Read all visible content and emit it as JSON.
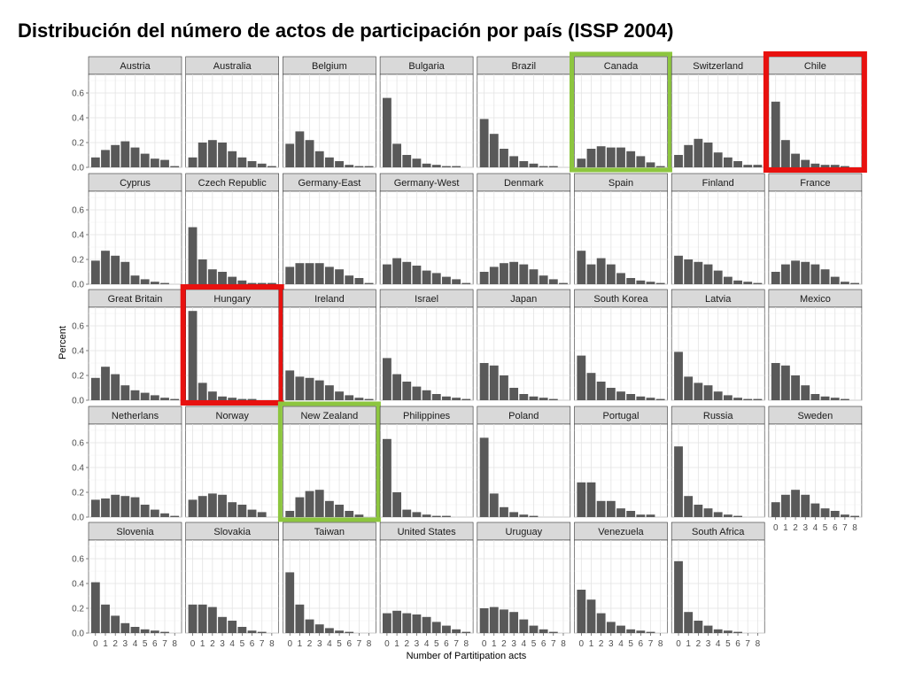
{
  "chart_data": {
    "type": "bar",
    "layout": "facet-grid",
    "title": "Distribución del número de actos de participación por país (ISSP 2004)",
    "xlabel": "Number of Partitipation acts",
    "ylabel": "Percent",
    "x": [
      "0",
      "1",
      "2",
      "3",
      "4",
      "5",
      "6",
      "7",
      "8"
    ],
    "ylim": [
      0,
      0.75
    ],
    "yticks": [
      "0.0",
      "0.2",
      "0.4",
      "0.6"
    ],
    "grid": true,
    "bar_color": "#595959",
    "highlight_colors": {
      "red": "#e8110f",
      "green": "#8dc63f"
    },
    "panels": [
      {
        "name": "Austria",
        "values": [
          0.08,
          0.14,
          0.18,
          0.21,
          0.16,
          0.11,
          0.07,
          0.06,
          0.01
        ]
      },
      {
        "name": "Australia",
        "values": [
          0.08,
          0.2,
          0.22,
          0.2,
          0.13,
          0.08,
          0.05,
          0.03,
          0.01
        ]
      },
      {
        "name": "Belgium",
        "values": [
          0.19,
          0.29,
          0.22,
          0.13,
          0.08,
          0.05,
          0.02,
          0.01,
          0.01
        ]
      },
      {
        "name": "Bulgaria",
        "values": [
          0.56,
          0.19,
          0.1,
          0.07,
          0.03,
          0.02,
          0.01,
          0.01,
          0.0
        ]
      },
      {
        "name": "Brazil",
        "values": [
          0.39,
          0.27,
          0.15,
          0.09,
          0.05,
          0.03,
          0.01,
          0.01,
          0.0
        ]
      },
      {
        "name": "Canada",
        "values": [
          0.07,
          0.15,
          0.17,
          0.16,
          0.16,
          0.13,
          0.09,
          0.04,
          0.01
        ],
        "highlight": "green"
      },
      {
        "name": "Switzerland",
        "values": [
          0.1,
          0.18,
          0.23,
          0.2,
          0.12,
          0.08,
          0.05,
          0.02,
          0.02
        ]
      },
      {
        "name": "Chile",
        "values": [
          0.53,
          0.22,
          0.11,
          0.06,
          0.03,
          0.02,
          0.02,
          0.01,
          0.0
        ],
        "highlight": "red"
      },
      {
        "name": "Cyprus",
        "values": [
          0.19,
          0.27,
          0.23,
          0.18,
          0.07,
          0.04,
          0.02,
          0.01,
          0.0
        ]
      },
      {
        "name": "Czech Republic",
        "values": [
          0.46,
          0.2,
          0.12,
          0.1,
          0.06,
          0.03,
          0.01,
          0.01,
          0.01
        ]
      },
      {
        "name": "Germany-East",
        "values": [
          0.14,
          0.17,
          0.17,
          0.17,
          0.14,
          0.12,
          0.07,
          0.05,
          0.01
        ]
      },
      {
        "name": "Germany-West",
        "values": [
          0.16,
          0.21,
          0.18,
          0.15,
          0.11,
          0.09,
          0.06,
          0.04,
          0.01
        ]
      },
      {
        "name": "Denmark",
        "values": [
          0.1,
          0.14,
          0.17,
          0.18,
          0.16,
          0.12,
          0.07,
          0.04,
          0.01
        ]
      },
      {
        "name": "Spain",
        "values": [
          0.27,
          0.16,
          0.21,
          0.16,
          0.09,
          0.05,
          0.03,
          0.02,
          0.01
        ]
      },
      {
        "name": "Finland",
        "values": [
          0.23,
          0.2,
          0.18,
          0.16,
          0.11,
          0.06,
          0.03,
          0.02,
          0.01
        ]
      },
      {
        "name": "France",
        "values": [
          0.1,
          0.16,
          0.19,
          0.18,
          0.16,
          0.12,
          0.06,
          0.02,
          0.01
        ]
      },
      {
        "name": "Great Britain",
        "values": [
          0.18,
          0.27,
          0.21,
          0.12,
          0.08,
          0.06,
          0.04,
          0.02,
          0.01
        ]
      },
      {
        "name": "Hungary",
        "values": [
          0.72,
          0.14,
          0.07,
          0.03,
          0.02,
          0.01,
          0.01,
          0.0,
          0.0
        ],
        "highlight": "red"
      },
      {
        "name": "Ireland",
        "values": [
          0.24,
          0.19,
          0.18,
          0.16,
          0.12,
          0.07,
          0.04,
          0.02,
          0.01
        ]
      },
      {
        "name": "Israel",
        "values": [
          0.34,
          0.21,
          0.15,
          0.11,
          0.08,
          0.05,
          0.03,
          0.02,
          0.01
        ]
      },
      {
        "name": "Japan",
        "values": [
          0.3,
          0.28,
          0.2,
          0.1,
          0.05,
          0.03,
          0.02,
          0.01,
          0.0
        ]
      },
      {
        "name": "South Korea",
        "values": [
          0.36,
          0.22,
          0.15,
          0.1,
          0.07,
          0.05,
          0.03,
          0.02,
          0.01
        ]
      },
      {
        "name": "Latvia",
        "values": [
          0.39,
          0.19,
          0.14,
          0.12,
          0.07,
          0.04,
          0.02,
          0.01,
          0.01
        ]
      },
      {
        "name": "Mexico",
        "values": [
          0.3,
          0.28,
          0.2,
          0.12,
          0.05,
          0.03,
          0.02,
          0.01,
          0.0
        ]
      },
      {
        "name": "Netherlans",
        "values": [
          0.14,
          0.15,
          0.18,
          0.17,
          0.16,
          0.1,
          0.06,
          0.03,
          0.01
        ]
      },
      {
        "name": "Norway",
        "values": [
          0.14,
          0.17,
          0.19,
          0.18,
          0.12,
          0.1,
          0.06,
          0.04,
          0.0
        ]
      },
      {
        "name": "New Zealand",
        "values": [
          0.05,
          0.16,
          0.21,
          0.22,
          0.13,
          0.1,
          0.05,
          0.02,
          0.0
        ],
        "highlight": "green"
      },
      {
        "name": "Philippines",
        "values": [
          0.63,
          0.2,
          0.06,
          0.04,
          0.02,
          0.01,
          0.01,
          0.0,
          0.0
        ]
      },
      {
        "name": "Poland",
        "values": [
          0.64,
          0.19,
          0.08,
          0.04,
          0.02,
          0.01,
          0.0,
          0.0,
          0.0
        ]
      },
      {
        "name": "Portugal",
        "values": [
          0.28,
          0.28,
          0.13,
          0.13,
          0.07,
          0.05,
          0.02,
          0.02,
          0.0
        ]
      },
      {
        "name": "Russia",
        "values": [
          0.57,
          0.17,
          0.1,
          0.07,
          0.04,
          0.02,
          0.01,
          0.0,
          0.0
        ]
      },
      {
        "name": "Sweden",
        "values": [
          0.12,
          0.18,
          0.22,
          0.18,
          0.11,
          0.07,
          0.05,
          0.02,
          0.01
        ]
      },
      {
        "name": "Slovenia",
        "values": [
          0.41,
          0.23,
          0.14,
          0.08,
          0.05,
          0.03,
          0.02,
          0.01,
          0.0
        ]
      },
      {
        "name": "Slovakia",
        "values": [
          0.23,
          0.23,
          0.21,
          0.13,
          0.1,
          0.05,
          0.02,
          0.01,
          0.0
        ]
      },
      {
        "name": "Taiwan",
        "values": [
          0.49,
          0.23,
          0.11,
          0.07,
          0.04,
          0.02,
          0.01,
          0.0,
          0.0
        ]
      },
      {
        "name": "United States",
        "values": [
          0.16,
          0.18,
          0.16,
          0.15,
          0.13,
          0.09,
          0.06,
          0.03,
          0.01
        ]
      },
      {
        "name": "Uruguay",
        "values": [
          0.2,
          0.21,
          0.19,
          0.17,
          0.11,
          0.06,
          0.03,
          0.01,
          0.0
        ]
      },
      {
        "name": "Venezuela",
        "values": [
          0.35,
          0.27,
          0.16,
          0.09,
          0.06,
          0.03,
          0.02,
          0.01,
          0.0
        ]
      },
      {
        "name": "South Africa",
        "values": [
          0.58,
          0.17,
          0.1,
          0.06,
          0.03,
          0.02,
          0.01,
          0.0,
          0.0
        ]
      }
    ]
  }
}
